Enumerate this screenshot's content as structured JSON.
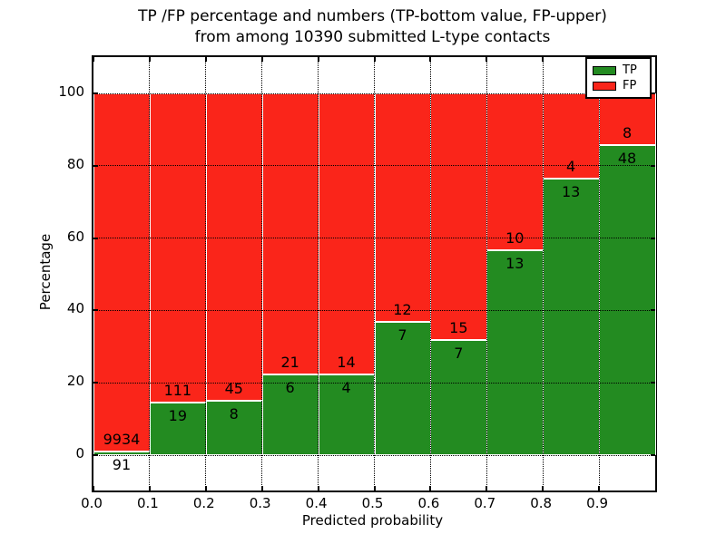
{
  "title": {
    "line1": "TP /FP percentage and numbers (TP-bottom value, FP-upper)",
    "line2": "from among 10390 submitted L-type contacts"
  },
  "y_axis": {
    "label": "Percentage",
    "tick_values": [
      0,
      20,
      40,
      60,
      80,
      100
    ]
  },
  "x_axis": {
    "label": "Predicted probability",
    "tick_labels": [
      "0.0",
      "0.1",
      "0.2",
      "0.3",
      "0.4",
      "0.5",
      "0.6",
      "0.7",
      "0.8",
      "0.9"
    ]
  },
  "legend": {
    "items": [
      {
        "label": "TP",
        "color": "#238b21"
      },
      {
        "label": "FP",
        "color": "#fa251a"
      }
    ]
  },
  "colors": {
    "tp": "#238b21",
    "fp": "#fa251a",
    "grid": "#000000",
    "background": "#ffffff"
  },
  "chart_data": {
    "type": "bar",
    "stacked": true,
    "title": "TP /FP percentage and numbers (TP-bottom value, FP-upper) from among 10390 submitted L-type contacts",
    "xlabel": "Predicted probability",
    "ylabel": "Percentage",
    "total_contacts": 10390,
    "bin_edges": [
      0.0,
      0.1,
      0.2,
      0.3,
      0.4,
      0.5,
      0.6,
      0.7,
      0.8,
      0.9,
      1.0
    ],
    "xlim": [
      0,
      1
    ],
    "ylim": [
      -10,
      110
    ],
    "grid": true,
    "legend_position": "upper right",
    "series": [
      {
        "name": "TP",
        "color": "#238b21",
        "counts": [
          91,
          19,
          8,
          6,
          4,
          7,
          7,
          13,
          13,
          48
        ],
        "pct": [
          0.91,
          14.62,
          15.09,
          22.22,
          22.22,
          36.84,
          31.82,
          56.52,
          76.47,
          85.71
        ]
      },
      {
        "name": "FP",
        "color": "#fa251a",
        "counts": [
          9934,
          111,
          45,
          21,
          14,
          12,
          15,
          10,
          4,
          8
        ],
        "pct": [
          99.09,
          85.38,
          84.91,
          77.78,
          77.78,
          63.16,
          68.18,
          43.48,
          23.53,
          14.29
        ]
      }
    ]
  }
}
